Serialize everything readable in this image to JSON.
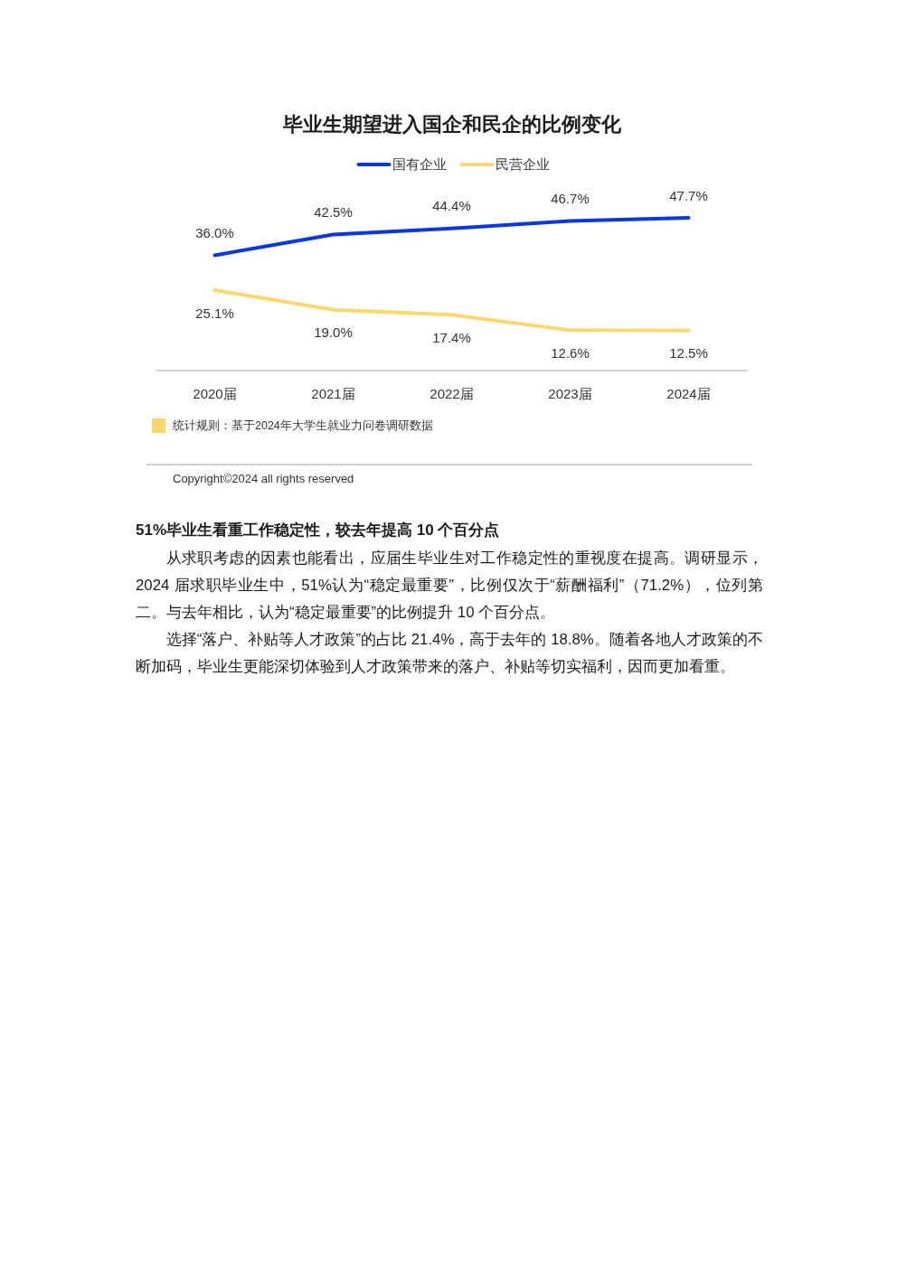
{
  "chart_data": {
    "type": "line",
    "title": "毕业生期望进入国企和民企的比例变化",
    "legend": "top",
    "categories": [
      "2020届",
      "2021届",
      "2022届",
      "2023届",
      "2024届"
    ],
    "series": [
      {
        "name": "国有企业",
        "color": "#0b37e0",
        "values": [
          36.0,
          42.5,
          44.4,
          46.7,
          47.7
        ],
        "value_labels": [
          "36.0%",
          "42.5%",
          "44.4%",
          "46.7%",
          "47.7%"
        ]
      },
      {
        "name": "民营企业",
        "color": "#fcd86c",
        "values": [
          25.1,
          19.0,
          17.4,
          12.6,
          12.5
        ],
        "value_labels": [
          "25.1%",
          "19.0%",
          "17.4%",
          "12.6%",
          "12.5%"
        ]
      }
    ],
    "annotations": [
      "统计规则：基于2024年大学生就业力问卷调研数据",
      "Copyright©2024 all rights reserved",
      "51%毕业生看重工作稳定性，较去年提高 10 个百分点",
      "从求职考虑的因素也能看出，应届生毕业生对工作稳定性的重视度在提高。调研显示，2024 届求职毕业生中，51%认为“稳定最重要”，比例仅次于“薪酬福利”（71.2%），位列第二。与去年相比，认为“稳定最重要”的比例提升 10 个百分点。",
      "选择“落户、补贴等人才政策”的占比 21.4%，高于去年的 18.8%。随着各地人才政策的不断加码，毕业生更能深切体验到人才政策带来的落户、补贴等切实福利，因而更加看重。"
    ]
  }
}
